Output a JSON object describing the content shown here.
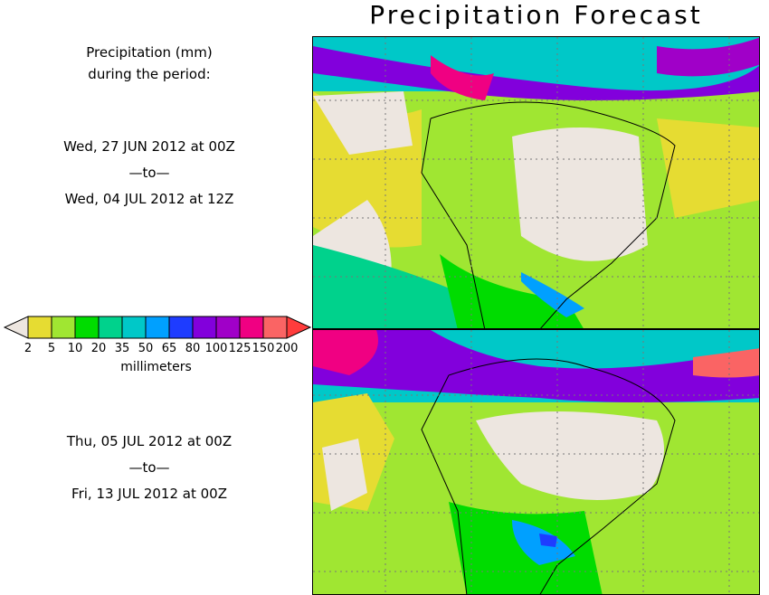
{
  "title": "Precipitation Forecast",
  "legend": {
    "heading_line1": "Precipitation (mm)",
    "heading_line2": "during the period:",
    "unit": "millimeters",
    "levels": [
      "2",
      "5",
      "10",
      "20",
      "35",
      "50",
      "65",
      "80",
      "100",
      "125",
      "150",
      "200"
    ],
    "colors": [
      "#e6dc32",
      "#a0e632",
      "#00dc00",
      "#00d28c",
      "#00c8c8",
      "#00a0ff",
      "#1e3cff",
      "#8200dc",
      "#a000c8",
      "#f00082",
      "#fa6464"
    ],
    "below_color": "#ede6e0",
    "above_color": "#ff3c3c"
  },
  "periods": [
    {
      "start": "Wed, 27 JUN 2012 at 00Z",
      "sep": "—to—",
      "end": "Wed, 04 JUL 2012 at 12Z"
    },
    {
      "start": "Thu, 05 JUL 2012 at 00Z",
      "sep": "—to—",
      "end": "Fri, 13 JUL 2012 at 00Z"
    }
  ]
}
